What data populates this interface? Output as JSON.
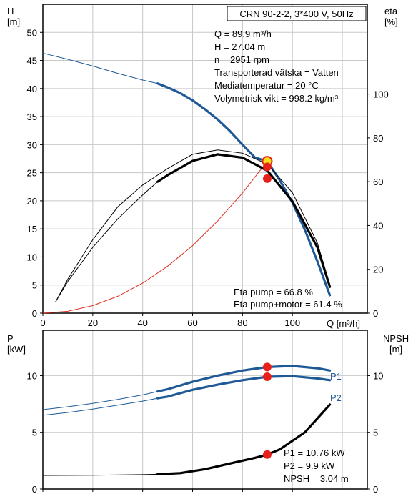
{
  "top_chart": {
    "y_left_label": [
      "H",
      "[m]"
    ],
    "y_right_label": [
      "eta",
      "[%]"
    ],
    "x_label": "Q [m³/h]",
    "title_box": "CRN 90-2-2, 3*400 V, 50Hz",
    "info_lines": [
      "Q = 89.9 m³/h",
      "H = 27.04 m",
      "n = 2951 rpm",
      "Transporterad vätska = Vatten",
      "Mediatemperatur = 20 °C",
      "Volymetrisk vikt = 998.2 kg/m³"
    ],
    "eta_lines": [
      "Eta pump = 66.8 %",
      "Eta pump+motor = 61.4 %"
    ],
    "x_ticks": [
      "0",
      "20",
      "40",
      "60",
      "80",
      "100"
    ],
    "y_left_ticks": [
      "0",
      "5",
      "10",
      "15",
      "20",
      "25",
      "30",
      "35",
      "40",
      "45",
      "50"
    ],
    "y_right_ticks": [
      "0",
      "20",
      "40",
      "60",
      "80",
      "100"
    ]
  },
  "bottom_chart": {
    "y_left_label": [
      "P",
      "[kW]"
    ],
    "y_right_label": [
      "NPSH",
      "[m]"
    ],
    "y_left_ticks": [
      "0",
      "5",
      "10"
    ],
    "y_right_ticks": [
      "0",
      "5",
      "10"
    ],
    "series_labels": [
      "P1",
      "P2"
    ],
    "info_lines": [
      "P1 = 10.76 kW",
      "P2 = 9.9 kW",
      "NPSH = 3.04 m"
    ]
  },
  "colors": {
    "head": "#1f5a96",
    "eta": "#000000",
    "system": "#e03020",
    "marker": "#e8201a",
    "power": "#1f5a96",
    "npsh": "#000000",
    "grid": "#c8c8c8"
  },
  "chart_data": [
    {
      "type": "line",
      "title": "CRN 90-2-2, 3*400 V, 50Hz",
      "xlabel": "Q [m³/h]",
      "ylabel": "H [m]",
      "y2label": "eta [%]",
      "xlim": [
        0,
        130
      ],
      "ylim": [
        0,
        55
      ],
      "y2lim": [
        0,
        141
      ],
      "grid": true,
      "series": [
        {
          "axis": "left",
          "color": "#1f5a96",
          "x": [
            0,
            10,
            20,
            30,
            40,
            46,
            50,
            55,
            60,
            65,
            70,
            75,
            80,
            85,
            89.9,
            95,
            100,
            105,
            110,
            115
          ],
          "y": [
            46.3,
            45.2,
            44.0,
            42.7,
            41.5,
            40.9,
            40.2,
            39.2,
            37.9,
            36.3,
            34.5,
            32.4,
            30.0,
            27.7,
            27.04,
            23.6,
            19.7,
            14.8,
            9.2,
            3.2
          ],
          "bold_from": 46
        },
        {
          "axis": "left",
          "color": "#e03020",
          "x": [
            0,
            10,
            20,
            30,
            40,
            50,
            60,
            70,
            80,
            89.9
          ],
          "y": [
            0,
            0.33,
            1.34,
            3.0,
            5.35,
            8.36,
            12.0,
            16.4,
            21.4,
            27.04
          ]
        },
        {
          "axis": "right",
          "color": "#000000",
          "x": [
            5,
            10,
            20,
            30,
            40,
            46,
            50,
            60,
            70,
            80,
            90,
            100,
            110,
            115
          ],
          "y": [
            5,
            14.5,
            30,
            43,
            54,
            60,
            63,
            69.5,
            72.5,
            71,
            65,
            51,
            30,
            12
          ],
          "bold_from": 46
        },
        {
          "axis": "right",
          "color": "#000000",
          "x": [
            5,
            10,
            20,
            30,
            40,
            46,
            50,
            60,
            70,
            80,
            90,
            100,
            110,
            115
          ],
          "y": [
            5,
            15.5,
            33.5,
            48.5,
            58.5,
            63,
            66,
            72.5,
            74.5,
            73,
            68,
            55,
            32,
            13
          ]
        }
      ],
      "points": [
        {
          "x": 89.9,
          "y": 27.04,
          "axis": "left",
          "kind": "hollow"
        },
        {
          "x": 89.9,
          "y": 66.8,
          "axis": "right",
          "kind": "filled"
        },
        {
          "x": 89.9,
          "y": 61.4,
          "axis": "right",
          "kind": "filled"
        }
      ]
    },
    {
      "type": "line",
      "ylabel": "P [kW]",
      "y2label": "NPSH [m]",
      "xlim": [
        0,
        130
      ],
      "ylim": [
        0,
        14
      ],
      "grid": true,
      "series": [
        {
          "name": "P1",
          "color": "#1f5a96",
          "x": [
            0,
            10,
            20,
            30,
            40,
            46,
            50,
            60,
            70,
            80,
            89.9,
            100,
            110,
            115
          ],
          "y": [
            7.0,
            7.25,
            7.55,
            7.9,
            8.3,
            8.6,
            8.8,
            9.45,
            10.0,
            10.45,
            10.76,
            10.85,
            10.65,
            10.45
          ],
          "bold_from": 46
        },
        {
          "name": "P2",
          "color": "#1f5a96",
          "x": [
            0,
            10,
            20,
            30,
            40,
            46,
            50,
            60,
            70,
            80,
            89.9,
            100,
            110,
            115
          ],
          "y": [
            6.5,
            6.75,
            7.05,
            7.4,
            7.75,
            8.0,
            8.15,
            8.75,
            9.2,
            9.6,
            9.9,
            9.95,
            9.75,
            9.6
          ],
          "bold_from": 46
        },
        {
          "axis": "right",
          "color": "#000000",
          "x": [
            0,
            20,
            40,
            46,
            55,
            65,
            75,
            85,
            89.9,
            95,
            105,
            115
          ],
          "y": [
            1.2,
            1.22,
            1.27,
            1.3,
            1.4,
            1.75,
            2.25,
            2.75,
            3.04,
            3.5,
            5.0,
            7.45
          ],
          "bold_from": 46
        }
      ],
      "points": [
        {
          "x": 89.9,
          "y": 10.76,
          "kind": "filled"
        },
        {
          "x": 89.9,
          "y": 9.9,
          "kind": "filled"
        },
        {
          "x": 89.9,
          "y": 3.04,
          "kind": "filled"
        }
      ]
    }
  ]
}
